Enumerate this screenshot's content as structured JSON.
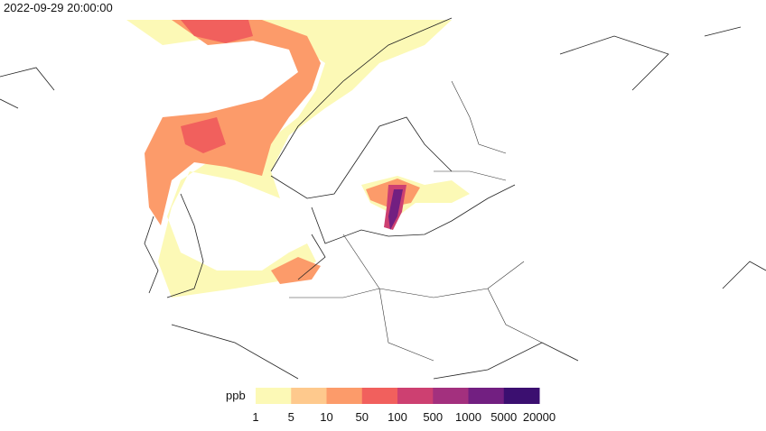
{
  "timestamp": "2022-09-29 20:00:00",
  "legend": {
    "title": "ppb",
    "colors": [
      "#fcf9b6",
      "#fec98d",
      "#fc9b6a",
      "#f1605d",
      "#cd4071",
      "#a3307e",
      "#721f81",
      "#3b0f70"
    ],
    "ticks": [
      1,
      5,
      10,
      50,
      100,
      500,
      1000,
      5000,
      20000
    ]
  }
}
